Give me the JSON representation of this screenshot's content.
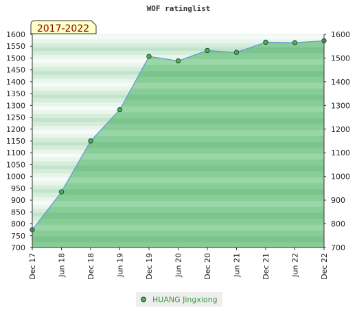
{
  "chart_data": {
    "type": "area",
    "title": "WOF ratinglist",
    "badge": "2017-2022",
    "categories": [
      "Dec 17",
      "Jun 18",
      "Dec 18",
      "Jun 19",
      "Dec 19",
      "Jun 20",
      "Dec 20",
      "Jun 21",
      "Dec 21",
      "Jun 22",
      "Dec 22"
    ],
    "y_ticks_left": [
      700,
      750,
      800,
      850,
      900,
      950,
      1000,
      1050,
      1100,
      1150,
      1200,
      1250,
      1300,
      1350,
      1400,
      1450,
      1500,
      1550,
      1600
    ],
    "y_ticks_right": [
      700,
      800,
      900,
      1000,
      1100,
      1200,
      1300,
      1400,
      1500,
      1600
    ],
    "ylim": [
      700,
      1600
    ],
    "series": [
      {
        "name": "HUANG Jingxiong",
        "values": [
          775,
          935,
          1150,
          1282,
          1507,
          1488,
          1532,
          1524,
          1567,
          1565,
          1573
        ]
      }
    ],
    "legend_position": "bottom-center",
    "colors": {
      "area": "#7ec48f",
      "line": "#5b9bd5",
      "marker": "#4caf60",
      "badge_bg": "#ffffc6",
      "legend_text": "#3a9a3a"
    }
  }
}
